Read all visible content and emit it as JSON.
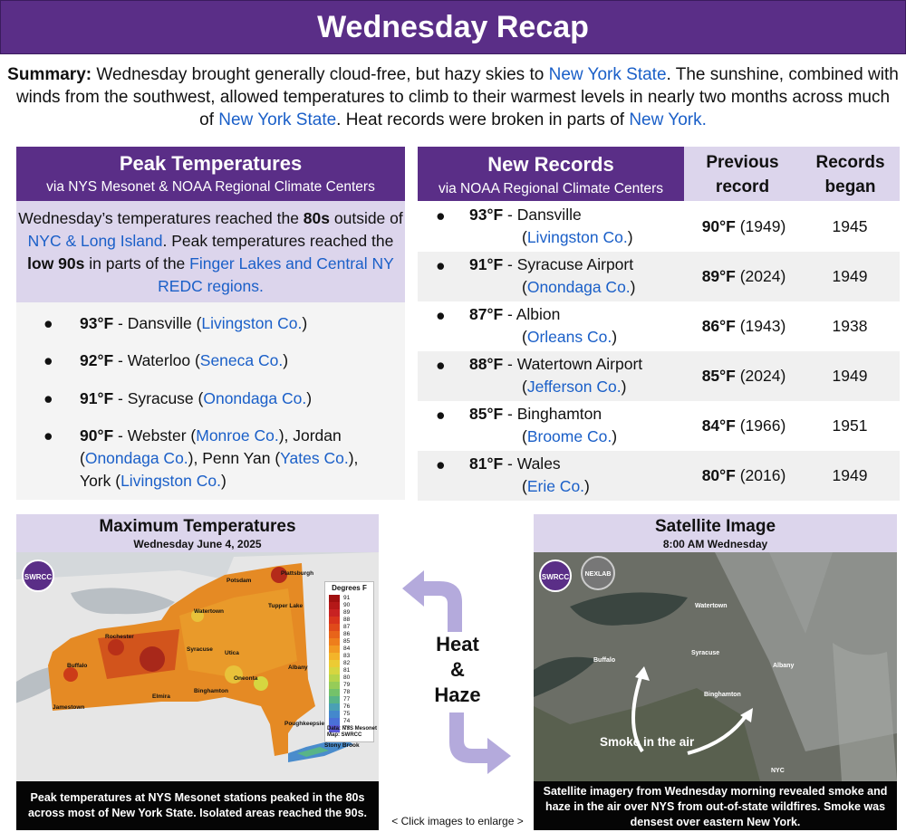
{
  "header": {
    "title": "Wednesday Recap"
  },
  "summary": {
    "label": "Summary:",
    "p1": " Wednesday brought generally cloud-free, but hazy skies to ",
    "l1": "New York State",
    "p2": ". The sunshine, combined with winds from the southwest, allowed temperatures to climb to their warmest levels in nearly two months across much of ",
    "l2": "New York State",
    "p3": ". Heat records were broken in parts of ",
    "l3": "New York.",
    "p4": ""
  },
  "peak": {
    "title": "Peak Temperatures",
    "subtitle": "via NYS Mesonet & NOAA Regional Climate Centers",
    "intro": {
      "a": "Wednesday’s temperatures reached the ",
      "b": "80s",
      "c": " outside of ",
      "d": "NYC & Long Island",
      "e": ". Peak temperatures reached the ",
      "f": "low 90s",
      "g": " in parts of the ",
      "h": "Finger Lakes and Central NY REDC regions."
    },
    "items": [
      {
        "bullet": "●",
        "temp": "93°F",
        "place": " - Dansville (",
        "county": "Livingston Co.",
        "end": ")"
      },
      {
        "bullet": "●",
        "temp": "92°F",
        "place": " - Waterloo (",
        "county": "Seneca Co.",
        "end": ")"
      },
      {
        "bullet": "●",
        "temp": "91°F",
        "place": " - Syracuse (",
        "county": "Onondaga Co.",
        "end": ")"
      }
    ],
    "item4": {
      "bullet": "●",
      "temp": "90°F",
      "a": " - Webster (",
      "c1": "Monroe Co.",
      "b": "), Jordan (",
      "c2": "Onondaga Co.",
      "c": "), Penn Yan (",
      "c3": "Yates Co.",
      "d": "), York (",
      "c4": "Livingston Co.",
      "e": ")"
    }
  },
  "records": {
    "title": "New Records",
    "subtitle": "via NOAA Regional Climate Centers",
    "col_prev": "Previous record",
    "col_began": "Records began",
    "rows": [
      {
        "bullet": "●",
        "temp": "93°F",
        "place": " - Dansville",
        "open": "(",
        "county": "Livingston Co.",
        "close": ")",
        "prev_temp": "90°F",
        "prev_year": " (1949)",
        "began": "1945"
      },
      {
        "bullet": "●",
        "temp": "91°F",
        "place": " - Syracuse Airport",
        "open": "(",
        "county": "Onondaga Co.",
        "close": ")",
        "prev_temp": "89°F",
        "prev_year": " (2024)",
        "began": "1949"
      },
      {
        "bullet": "●",
        "temp": "87°F",
        "place": " - Albion",
        "open": "(",
        "county": "Orleans Co.",
        "close": ")",
        "prev_temp": "86°F",
        "prev_year": " (1943)",
        "began": "1938"
      },
      {
        "bullet": "●",
        "temp": "88°F",
        "place": " - Watertown Airport",
        "open": "(",
        "county": "Jefferson Co.",
        "close": ")",
        "prev_temp": "85°F",
        "prev_year": " (2024)",
        "began": "1949"
      },
      {
        "bullet": "●",
        "temp": "85°F",
        "place": " - Binghamton",
        "open": "(",
        "county": "Broome Co.",
        "close": ")",
        "prev_temp": "84°F",
        "prev_year": " (1966)",
        "began": "1951"
      },
      {
        "bullet": "●",
        "temp": "81°F",
        "place": " - Wales",
        "open": "(",
        "county": "Erie Co.",
        "close": ")",
        "prev_temp": "80°F",
        "prev_year": " (2016)",
        "began": "1949"
      }
    ]
  },
  "map": {
    "title": "Maximum Temperatures",
    "subtitle": "Wednesday June 4, 2025",
    "caption": "Peak temperatures at NYS Mesonet stations peaked in the 80s across most of New York State. Isolated areas reached the 90s.",
    "legend_title": "Degrees F",
    "legend": [
      "91",
      "90",
      "89",
      "88",
      "87",
      "86",
      "85",
      "84",
      "83",
      "82",
      "81",
      "80",
      "79",
      "78",
      "77",
      "76",
      "75",
      "74",
      "73"
    ],
    "legend_colors": [
      "#a01010",
      "#b41818",
      "#c82222",
      "#d8341c",
      "#e04a1a",
      "#e8641a",
      "#ee7e1c",
      "#f29a22",
      "#f3b42a",
      "#eccb34",
      "#d6d640",
      "#b6d44a",
      "#96cc58",
      "#74c26a",
      "#58b488",
      "#4aa0b4",
      "#4488cc",
      "#4a70d8",
      "#5a58d8"
    ],
    "credit1": "Data: NYS Mesonet",
    "credit2": "Map: SWRCC",
    "logo": "SWRCC",
    "cities": [
      "Plattsburgh",
      "Potsdam",
      "Watertown",
      "Tupper Lake",
      "Buffalo",
      "Rochester",
      "Syracuse",
      "Utica",
      "Albany",
      "Elmira",
      "Binghamton",
      "Jamestown",
      "Oneonta",
      "Poughkeepsie",
      "Stony Brook"
    ]
  },
  "satellite": {
    "title": "Satellite Image",
    "subtitle": "8:00 AM Wednesday",
    "caption": "Satellite imagery from Wednesday morning revealed smoke and haze in the air over NYS from out-of-state wildfires. Smoke was densest over eastern New York.",
    "smoke_label": "Smoke in the air",
    "logo": "SWRCC",
    "nexlab": "NEXLAB",
    "cities": [
      "Watertown",
      "Buffalo",
      "Syracuse",
      "Albany",
      "Binghamton",
      "NYC"
    ]
  },
  "middle": {
    "line1": "Heat",
    "line2": "&",
    "line3": "Haze",
    "click": "< Click images to enlarge >"
  },
  "colors": {
    "purple": "#5a2e87",
    "lavender": "#dcd5ec",
    "link_blue": "#1a5fc8"
  }
}
